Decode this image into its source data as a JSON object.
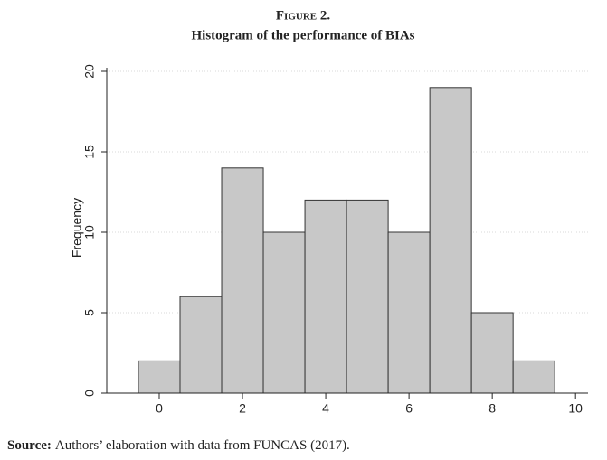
{
  "chart_data": {
    "type": "histogram",
    "title": "Figure 2.",
    "subtitle": "Histogram of the performance of BIAs",
    "y_label": "Frequency",
    "bins": [
      -0.5,
      0.5,
      1.5,
      2.5,
      3.5,
      4.5,
      5.5,
      6.5,
      7.5,
      8.5,
      9.5
    ],
    "values": [
      2,
      6,
      14,
      10,
      12,
      12,
      10,
      19,
      5,
      2
    ],
    "color": "#c8c8c8",
    "xlim": [
      -1.26,
      10.3
    ],
    "xticks": [
      0,
      2,
      4,
      6,
      8,
      10
    ],
    "ylim": [
      0,
      20
    ],
    "yticks": [
      0,
      5,
      10,
      15,
      20
    ],
    "grid": true
  },
  "source": {
    "label": "Source:",
    "text": "Authors’ elaboration with data from FUNCAS (2017)."
  }
}
